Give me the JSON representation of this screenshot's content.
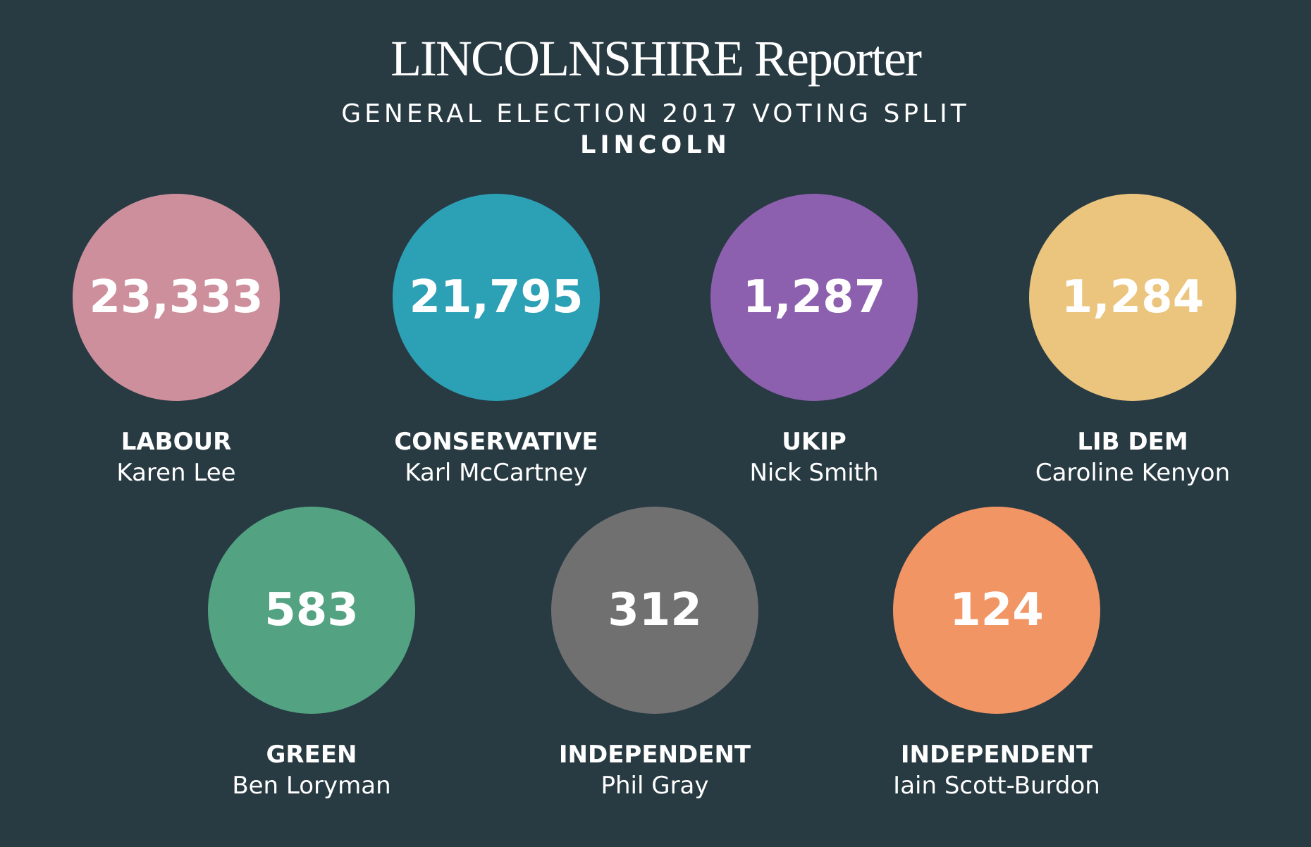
{
  "header": {
    "masthead": "LINCOLNSHIRE Reporter",
    "headline": "GENERAL ELECTION 2017 VOTING SPLIT",
    "constituency": "LINCOLN"
  },
  "candidates": [
    {
      "votes": "23,333",
      "party": "LABOUR",
      "name": "Karen Lee",
      "color": "#cd8f9c"
    },
    {
      "votes": "21,795",
      "party": "CONSERVATIVE",
      "name": "Karl McCartney",
      "color": "#2ca0b5"
    },
    {
      "votes": "1,287",
      "party": "UKIP",
      "name": "Nick Smith",
      "color": "#8c60ae"
    },
    {
      "votes": "1,284",
      "party": "LIB DEM",
      "name": "Caroline Kenyon",
      "color": "#ebc57d"
    },
    {
      "votes": "583",
      "party": "GREEN",
      "name": "Ben Loryman",
      "color": "#53a383"
    },
    {
      "votes": "312",
      "party": "INDEPENDENT",
      "name": "Phil Gray",
      "color": "#707070"
    },
    {
      "votes": "124",
      "party": "INDEPENDENT",
      "name": "Iain Scott-Burdon",
      "color": "#f29565"
    }
  ]
}
